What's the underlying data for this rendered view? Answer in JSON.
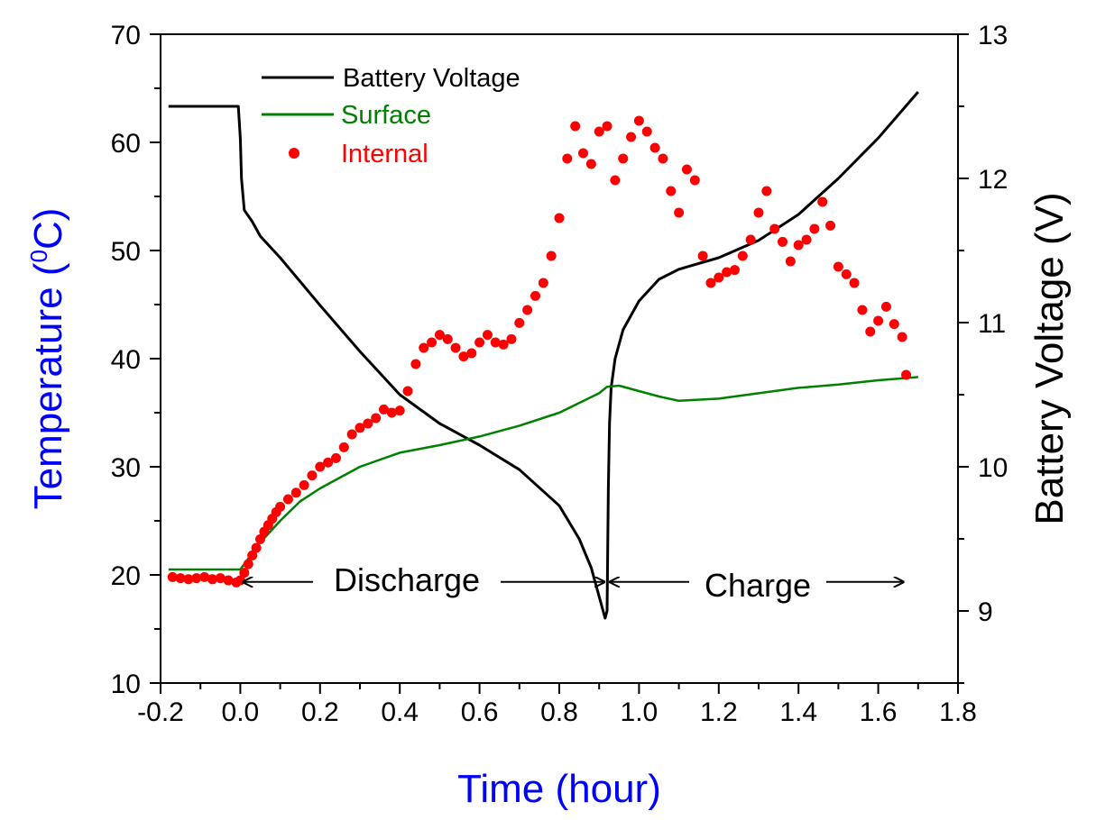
{
  "chart_data": {
    "type": "line",
    "x_label": "Time (hour)",
    "y_label_left": {
      "text": "Temperature (",
      "sup": "0",
      "tail": "C)"
    },
    "y_label_right": "Battery Voltage (V)",
    "xlim": [
      -0.2,
      1.8
    ],
    "ylim_left": [
      10,
      70
    ],
    "ylim_right": [
      8.5,
      13
    ],
    "x_ticks": [
      -0.2,
      0.0,
      0.2,
      0.4,
      0.6,
      0.8,
      1.0,
      1.2,
      1.4,
      1.6,
      1.8
    ],
    "x_tick_labels": [
      "-0.2",
      "0.0",
      "0.2",
      "0.4",
      "0.6",
      "0.8",
      "1.0",
      "1.2",
      "1.4",
      "1.6",
      "1.8"
    ],
    "y_ticks_left": [
      10,
      20,
      30,
      40,
      50,
      60,
      70
    ],
    "y_tick_labels_left": [
      "10",
      "20",
      "30",
      "40",
      "50",
      "60",
      "70"
    ],
    "y_ticks_right": [
      9,
      10,
      11,
      12,
      13
    ],
    "y_tick_labels_right": [
      "9",
      "10",
      "11",
      "12",
      "13"
    ],
    "legend": {
      "placement": "top-left",
      "entries": [
        {
          "label": "Battery Voltage",
          "color": "#000000",
          "style": "line"
        },
        {
          "label": "Surface",
          "color": "#008000",
          "style": "line"
        },
        {
          "label": "Internal",
          "color": "#ff0000",
          "style": "marker"
        }
      ]
    },
    "annotations": [
      {
        "text": "Discharge",
        "x_from": 0.0,
        "x_to": 0.92,
        "y": 19.6
      },
      {
        "text": "Charge",
        "x_from": 0.92,
        "x_to": 1.67,
        "y": 19.6
      }
    ],
    "series": [
      {
        "name": "Battery Voltage",
        "axis": "right",
        "color": "#000000",
        "x": [
          -0.18,
          -0.005,
          0.0,
          0.003,
          0.01,
          0.03,
          0.05,
          0.1,
          0.2,
          0.3,
          0.4,
          0.5,
          0.6,
          0.7,
          0.8,
          0.85,
          0.88,
          0.9,
          0.915,
          0.92,
          0.923,
          0.926,
          0.93,
          0.94,
          0.96,
          1.0,
          1.05,
          1.1,
          1.2,
          1.3,
          1.4,
          1.5,
          1.6,
          1.7
        ],
        "y": [
          12.5,
          12.5,
          12.28,
          12.0,
          11.78,
          11.7,
          11.6,
          11.45,
          11.12,
          10.8,
          10.5,
          10.3,
          10.15,
          9.98,
          9.73,
          9.5,
          9.3,
          9.1,
          8.95,
          9.0,
          9.85,
          10.3,
          10.55,
          10.75,
          10.95,
          11.15,
          11.3,
          11.37,
          11.45,
          11.57,
          11.75,
          12.0,
          12.28,
          12.6
        ]
      },
      {
        "name": "Surface",
        "axis": "left",
        "color": "#008000",
        "x": [
          -0.18,
          0.0,
          0.02,
          0.05,
          0.1,
          0.15,
          0.2,
          0.3,
          0.4,
          0.5,
          0.6,
          0.7,
          0.8,
          0.9,
          0.92,
          0.95,
          1.0,
          1.05,
          1.1,
          1.2,
          1.3,
          1.4,
          1.5,
          1.6,
          1.7
        ],
        "y": [
          20.5,
          20.5,
          21.5,
          23.0,
          25.0,
          26.8,
          28.0,
          30.0,
          31.3,
          32.0,
          32.8,
          33.8,
          35.0,
          36.8,
          37.4,
          37.5,
          37.0,
          36.5,
          36.1,
          36.3,
          36.8,
          37.3,
          37.6,
          38.0,
          38.3
        ]
      },
      {
        "name": "Internal",
        "axis": "left",
        "color": "#ff0000",
        "x": [
          -0.17,
          -0.15,
          -0.13,
          -0.11,
          -0.09,
          -0.07,
          -0.05,
          -0.03,
          -0.01,
          0.0,
          0.01,
          0.02,
          0.03,
          0.04,
          0.05,
          0.06,
          0.07,
          0.08,
          0.09,
          0.1,
          0.12,
          0.14,
          0.16,
          0.18,
          0.2,
          0.22,
          0.24,
          0.26,
          0.28,
          0.3,
          0.32,
          0.34,
          0.36,
          0.38,
          0.4,
          0.42,
          0.44,
          0.46,
          0.48,
          0.5,
          0.52,
          0.54,
          0.56,
          0.58,
          0.6,
          0.62,
          0.64,
          0.66,
          0.68,
          0.7,
          0.72,
          0.74,
          0.76,
          0.78,
          0.8,
          0.82,
          0.84,
          0.86,
          0.88,
          0.9,
          0.92,
          0.94,
          0.96,
          0.98,
          1.0,
          1.02,
          1.04,
          1.06,
          1.08,
          1.1,
          1.12,
          1.14,
          1.16,
          1.18,
          1.2,
          1.22,
          1.24,
          1.26,
          1.28,
          1.3,
          1.32,
          1.34,
          1.36,
          1.38,
          1.4,
          1.42,
          1.44,
          1.46,
          1.48,
          1.5,
          1.52,
          1.54,
          1.56,
          1.58,
          1.6,
          1.62,
          1.64,
          1.66,
          1.67
        ],
        "y": [
          19.8,
          19.7,
          19.6,
          19.7,
          19.8,
          19.6,
          19.7,
          19.5,
          19.3,
          19.5,
          20.2,
          21.0,
          21.8,
          22.5,
          23.3,
          24.0,
          24.6,
          25.2,
          25.8,
          26.3,
          27.0,
          27.6,
          28.3,
          29.2,
          30.0,
          30.4,
          30.8,
          31.8,
          33.0,
          33.6,
          34.0,
          34.5,
          35.3,
          35.0,
          35.2,
          37.0,
          39.5,
          41.0,
          41.5,
          42.2,
          41.8,
          41.0,
          40.2,
          40.5,
          41.5,
          42.2,
          41.5,
          41.3,
          41.8,
          43.3,
          44.5,
          45.8,
          47.0,
          49.5,
          53.0,
          58.5,
          61.5,
          59.0,
          58.0,
          61.0,
          61.5,
          56.5,
          58.5,
          60.5,
          62.0,
          61.0,
          59.5,
          58.5,
          55.5,
          53.5,
          57.5,
          56.5,
          49.5,
          47.0,
          47.5,
          48.0,
          48.2,
          49.5,
          51.0,
          53.5,
          55.5,
          52.0,
          50.8,
          49.0,
          50.5,
          51.0,
          52.0,
          54.5,
          52.3,
          48.5,
          47.8,
          47.0,
          44.5,
          42.5,
          43.5,
          44.8,
          43.2,
          42.0,
          38.5
        ]
      }
    ]
  }
}
